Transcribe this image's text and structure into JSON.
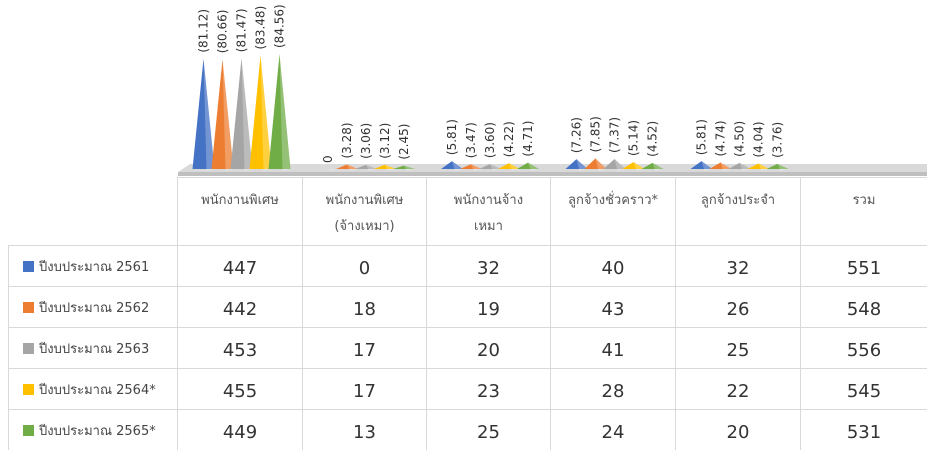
{
  "chart_data": {
    "type": "pyramid",
    "categories": [
      "พนักงานพิเศษ",
      "พนักงานพิเศษ (จ้างเหมา)",
      "พนักงานจ้างเหมา",
      "ลูกจ้างชั่วคราว*",
      "ลูกจ้างประจำ",
      "รวม"
    ],
    "series": [
      {
        "name": "ปีงบประมาณ 2561",
        "color": "#4472c4",
        "values": [
          81.12,
          0,
          5.81,
          7.26,
          5.81,
          null
        ],
        "value_labels": [
          "(81.12)",
          "0",
          "(5.81)",
          "(7.26)",
          "(5.81)",
          null
        ]
      },
      {
        "name": "ปีงบประมาณ 2562",
        "color": "#ed7d31",
        "values": [
          80.66,
          3.28,
          3.47,
          7.85,
          4.74,
          null
        ],
        "value_labels": [
          "(80.66)",
          "(3.28)",
          "(3.47)",
          "(7.85)",
          "(4.74)",
          null
        ]
      },
      {
        "name": "ปีงบประมาณ 2563",
        "color": "#a5a5a5",
        "values": [
          81.47,
          3.06,
          3.6,
          7.37,
          4.5,
          null
        ],
        "value_labels": [
          "(81.47)",
          "(3.06)",
          "(3.60)",
          "(7.37)",
          "(4.50)",
          null
        ]
      },
      {
        "name": "ปีงบประมาณ 2564*",
        "color": "#ffc000",
        "values": [
          83.48,
          3.12,
          4.22,
          5.14,
          4.04,
          null
        ],
        "value_labels": [
          "(83.48)",
          "(3.12)",
          "(4.22)",
          "(5.14)",
          "(4.04)",
          null
        ]
      },
      {
        "name": "ปีงบประมาณ 2565*",
        "color": "#70ad47",
        "values": [
          84.56,
          2.45,
          4.71,
          4.52,
          3.76,
          null
        ],
        "value_labels": [
          "(84.56)",
          "(2.45)",
          "(4.71)",
          "(4.52)",
          "(3.76)",
          null
        ]
      }
    ]
  },
  "table": {
    "rows": [
      [
        447,
        0,
        32,
        40,
        32,
        551
      ],
      [
        442,
        18,
        19,
        43,
        26,
        548
      ],
      [
        453,
        17,
        20,
        41,
        25,
        556
      ],
      [
        455,
        17,
        23,
        28,
        22,
        545
      ],
      [
        449,
        13,
        25,
        24,
        20,
        531
      ]
    ]
  }
}
